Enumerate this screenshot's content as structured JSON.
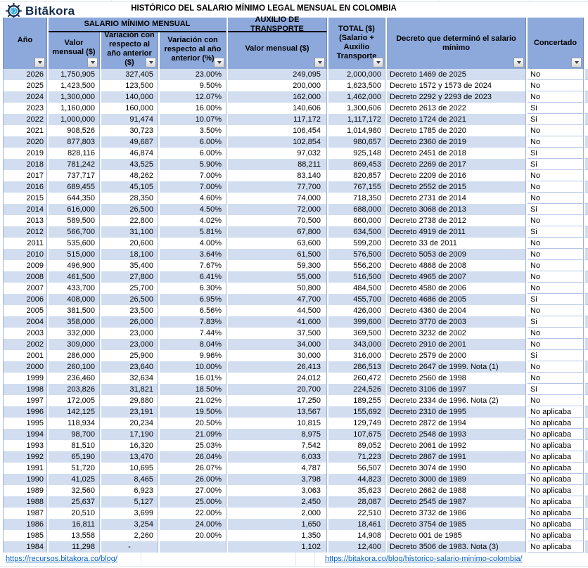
{
  "brand": {
    "name": "Bitākora"
  },
  "title": "HISTÓRICO DEL SALARIO MÍNIMO LEGAL MENSUAL EN COLOMBIA",
  "table": {
    "groups": {
      "salario": "SALARIO MÍNIMO MENSUAL",
      "auxilio": "AUXILIO DE TRANSPORTE"
    },
    "columns": {
      "year": "Año",
      "valor": "Valor mensual ($)",
      "var_pesos": "Variación con respecto al año anterior ($)",
      "var_pct": "Variación con respecto al año anterior (%)",
      "aux_valor": "Valor mensual ($)",
      "total": "TOTAL ($) (Salario + Auxilio Transporte",
      "decreto": "Decreto que determinó el salario mínimo",
      "concertado": "Concertado"
    },
    "rows": [
      [
        "2026",
        "1,750,905",
        "327,405",
        "23.00%",
        "249,095",
        "2,000,000",
        "Decreto 1469 de 2025",
        "No"
      ],
      [
        "2025",
        "1,423,500",
        "123,500",
        "9.50%",
        "200,000",
        "1,623,500",
        "Decreto 1572 y 1573 de 2024",
        "No"
      ],
      [
        "2024",
        "1,300,000",
        "140,000",
        "12.07%",
        "162,000",
        "1,462,000",
        "Decreto 2292 y 2293 de 2023",
        "No"
      ],
      [
        "2023",
        "1,160,000",
        "160,000",
        "16.00%",
        "140,606",
        "1,300,606",
        "Decreto 2613 de 2022",
        "Si"
      ],
      [
        "2022",
        "1,000,000",
        "91,474",
        "10.07%",
        "117,172",
        "1,117,172",
        "Decreto 1724 de 2021",
        "Si"
      ],
      [
        "2021",
        "908,526",
        "30,723",
        "3.50%",
        "106,454",
        "1,014,980",
        "Decreto 1785 de 2020",
        "No"
      ],
      [
        "2020",
        "877,803",
        "49,687",
        "6.00%",
        "102,854",
        "980,657",
        "Decreto 2360 de 2019",
        "No"
      ],
      [
        "2019",
        "828,116",
        "46,874",
        "6.00%",
        "97,032",
        "925,148",
        "Decreto 2451 de 2018",
        "Si"
      ],
      [
        "2018",
        "781,242",
        "43,525",
        "5.90%",
        "88,211",
        "869,453",
        "Decreto 2269 de 2017",
        "Si"
      ],
      [
        "2017",
        "737,717",
        "48,262",
        "7.00%",
        "83,140",
        "820,857",
        "Decreto 2209 de 2016",
        "No"
      ],
      [
        "2016",
        "689,455",
        "45,105",
        "7.00%",
        "77,700",
        "767,155",
        "Decreto 2552 de 2015",
        "No"
      ],
      [
        "2015",
        "644,350",
        "28,350",
        "4.60%",
        "74,000",
        "718,350",
        "Decreto 2731 de 2014",
        "No"
      ],
      [
        "2014",
        "616,000",
        "26,500",
        "4.50%",
        "72,000",
        "688,000",
        "Decreto 3068 de 2013",
        "Si"
      ],
      [
        "2013",
        "589,500",
        "22,800",
        "4.02%",
        "70,500",
        "660,000",
        "Decreto 2738 de 2012",
        "No"
      ],
      [
        "2012",
        "566,700",
        "31,100",
        "5.81%",
        "67,800",
        "634,500",
        "Decreto 4919 de 2011",
        "Si"
      ],
      [
        "2011",
        "535,600",
        "20,600",
        "4.00%",
        "63,600",
        "599,200",
        "Decreto 33 de 2011",
        "No"
      ],
      [
        "2010",
        "515,000",
        "18,100",
        "3.64%",
        "61,500",
        "576,500",
        "Decreto 5053 de 2009",
        "No"
      ],
      [
        "2009",
        "496,900",
        "35,400",
        "7.67%",
        "59,300",
        "556,200",
        "Decreto 4868 de 2008",
        "No"
      ],
      [
        "2008",
        "461,500",
        "27,800",
        "6.41%",
        "55,000",
        "516,500",
        "Decreto 4965 de 2007",
        "No"
      ],
      [
        "2007",
        "433,700",
        "25,700",
        "6.30%",
        "50,800",
        "484,500",
        "Decreto 4580 de 2006",
        "No"
      ],
      [
        "2006",
        "408,000",
        "26,500",
        "6.95%",
        "47,700",
        "455,700",
        "Decreto 4686 de 2005",
        "Si"
      ],
      [
        "2005",
        "381,500",
        "23,500",
        "6.56%",
        "44,500",
        "426,000",
        "Decreto 4360 de 2004",
        "No"
      ],
      [
        "2004",
        "358,000",
        "26,000",
        "7.83%",
        "41,600",
        "399,600",
        "Decreto 3770 de 2003",
        "Si"
      ],
      [
        "2003",
        "332,000",
        "23,000",
        "7.44%",
        "37,500",
        "369,500",
        "Decreto 3232 de 2002",
        "No"
      ],
      [
        "2002",
        "309,000",
        "23,000",
        "8.04%",
        "34,000",
        "343,000",
        "Decreto 2910 de 2001",
        "No"
      ],
      [
        "2001",
        "286,000",
        "25,900",
        "9.96%",
        "30,000",
        "316,000",
        "Decreto 2579 de 2000",
        "Si"
      ],
      [
        "2000",
        "260,100",
        "23,640",
        "10.00%",
        "26,413",
        "286,513",
        "Decreto 2647 de 1999. Nota (1)",
        "No"
      ],
      [
        "1999",
        "236,460",
        "32,634",
        "16.01%",
        "24,012",
        "260,472",
        "Decreto 2560 de 1998",
        "No"
      ],
      [
        "1998",
        "203,826",
        "31,821",
        "18.50%",
        "20,700",
        "224,526",
        "Decreto 3106 de 1997",
        "Si"
      ],
      [
        "1997",
        "172,005",
        "29,880",
        "21.02%",
        "17,250",
        "189,255",
        "Decreto 2334 de 1996. Nota (2)",
        "No"
      ],
      [
        "1996",
        "142,125",
        "23,191",
        "19.50%",
        "13,567",
        "155,692",
        "Decreto 2310 de 1995",
        "No aplicaba"
      ],
      [
        "1995",
        "118,934",
        "20,234",
        "20.50%",
        "10,815",
        "129,749",
        "Decreto 2872 de 1994",
        "No aplicaba"
      ],
      [
        "1994",
        "98,700",
        "17,190",
        "21.09%",
        "8,975",
        "107,675",
        "Decreto 2548 de 1993",
        "No aplicaba"
      ],
      [
        "1993",
        "81,510",
        "16,320",
        "25.03%",
        "7,542",
        "89,052",
        "Decreto 2061 de 1992",
        "No aplicaba"
      ],
      [
        "1992",
        "65,190",
        "13,470",
        "26.04%",
        "6,033",
        "71,223",
        "Decreto 2867 de 1991",
        "No aplicaba"
      ],
      [
        "1991",
        "51,720",
        "10,695",
        "26.07%",
        "4,787",
        "56,507",
        "Decreto 3074 de 1990",
        "No aplicaba"
      ],
      [
        "1990",
        "41,025",
        "8,465",
        "26.00%",
        "3,798",
        "44,823",
        "Decreto 3000 de 1989",
        "No aplicaba"
      ],
      [
        "1989",
        "32,560",
        "6,923",
        "27.00%",
        "3,063",
        "35,623",
        "Decreto 2662 de 1988",
        "No aplicaba"
      ],
      [
        "1988",
        "25,637",
        "5,127",
        "25.00%",
        "2,450",
        "28,087",
        "Decreto 2545 de 1987",
        "No aplicaba"
      ],
      [
        "1987",
        "20,510",
        "3,699",
        "22.00%",
        "2,000",
        "22,510",
        "Decreto 3732 de 1986",
        "No aplicaba"
      ],
      [
        "1986",
        "16,811",
        "3,254",
        "24.00%",
        "1,650",
        "18,461",
        "Decreto 3754 de 1985",
        "No aplicaba"
      ],
      [
        "1985",
        "13,558",
        "2,260",
        "20.00%",
        "1,350",
        "14,908",
        "Decreto 001 de 1985",
        "No aplicaba"
      ],
      [
        "1984",
        "11,298",
        "-",
        "",
        "1,102",
        "12,400",
        "Decreto 3506 de 1983. Nota (3)",
        "No aplicaba"
      ]
    ]
  },
  "footer": {
    "left_link": "https://recursos.bitakora.co/blog/",
    "right_link": "https://bitakora.co/blog/historico-salario-minimo-colombia/"
  },
  "colors": {
    "header_bg": "#8da9db",
    "band_row": "#d2ddf0",
    "link": "#0b62c5",
    "brand_navy": "#152a4e",
    "brand_cyan": "#29a8df"
  }
}
